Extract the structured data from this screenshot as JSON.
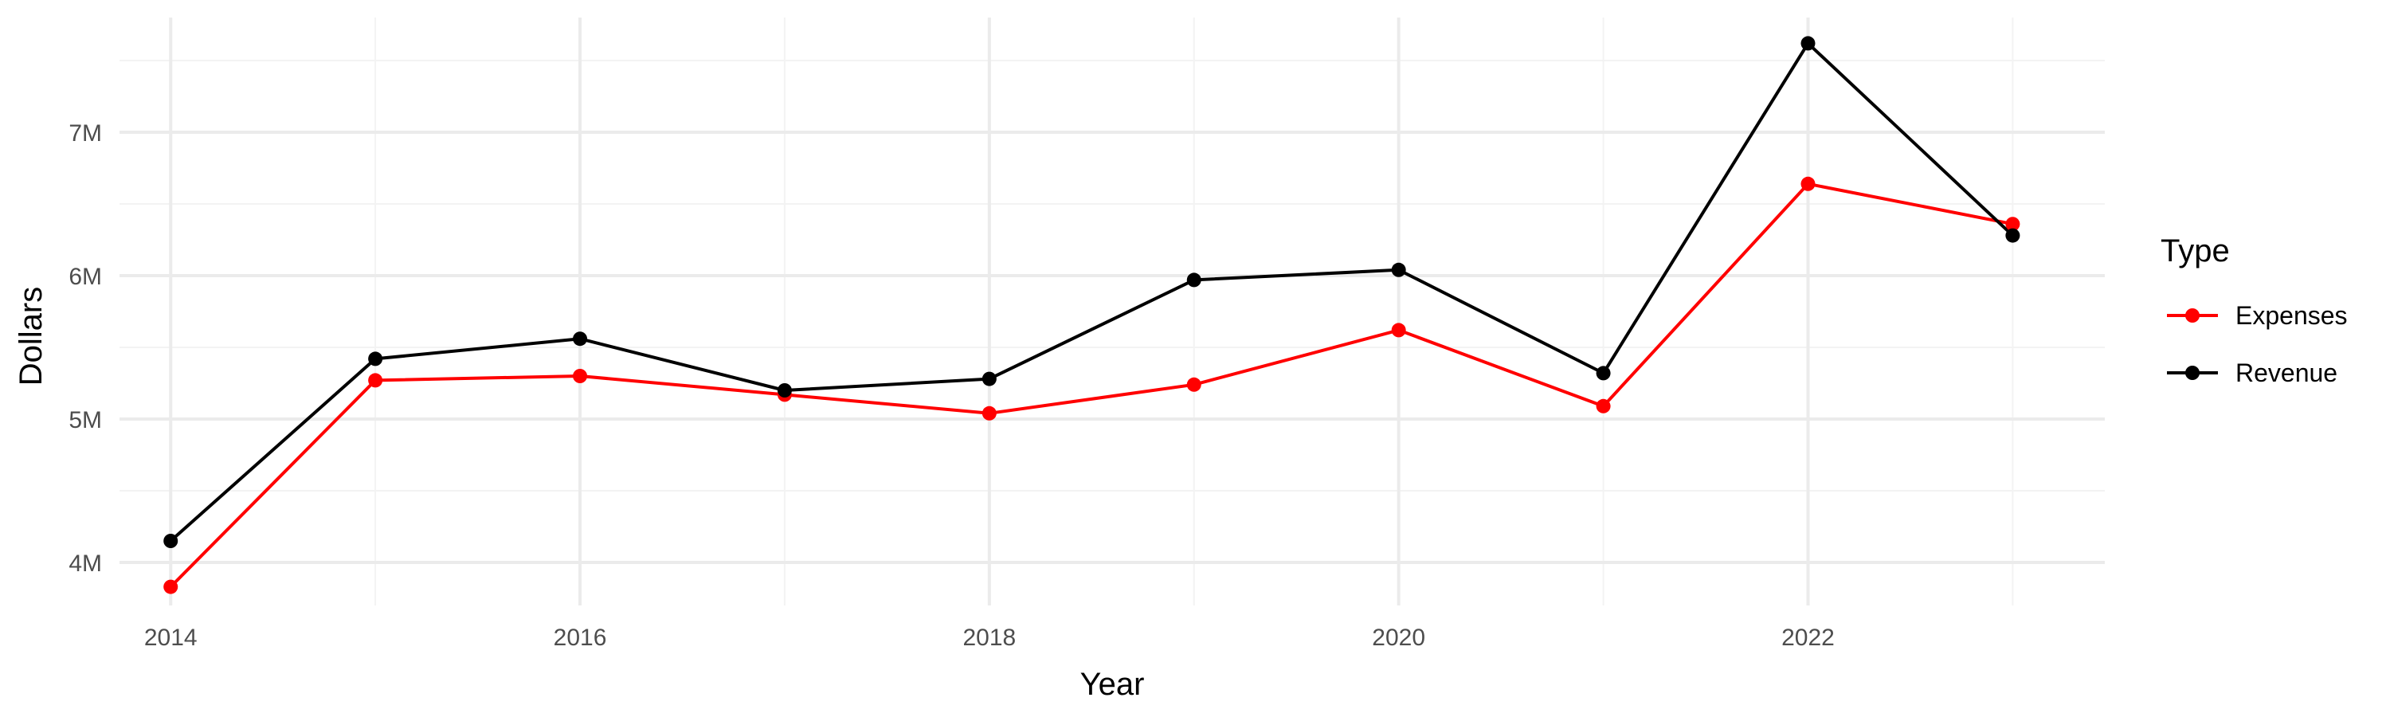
{
  "chart_data": {
    "type": "line",
    "title": "",
    "xlabel": "Year",
    "ylabel": "Dollars",
    "x": [
      2014,
      2015,
      2016,
      2017,
      2018,
      2019,
      2020,
      2021,
      2022,
      2023
    ],
    "xticks": [
      2014,
      2016,
      2018,
      2020,
      2022
    ],
    "xtick_labels": [
      "2014",
      "2016",
      "2018",
      "2020",
      "2022"
    ],
    "xlim": [
      2013.75,
      2023.45
    ],
    "yticks": [
      4000000,
      5000000,
      6000000,
      7000000
    ],
    "ytick_labels": [
      "4M",
      "5M",
      "6M",
      "7M"
    ],
    "ylim": [
      3700000,
      7800000
    ],
    "grid": true,
    "legend": {
      "title": "Type",
      "position": "right"
    },
    "series": [
      {
        "name": "Expenses",
        "color": "#ff0000",
        "values": [
          3830000,
          5270000,
          5300000,
          5170000,
          5040000,
          5240000,
          5620000,
          5090000,
          6640000,
          6360000
        ]
      },
      {
        "name": "Revenue",
        "color": "#000000",
        "values": [
          4150000,
          5420000,
          5560000,
          5200000,
          5280000,
          5970000,
          6040000,
          5320000,
          7620000,
          6280000
        ]
      }
    ]
  }
}
